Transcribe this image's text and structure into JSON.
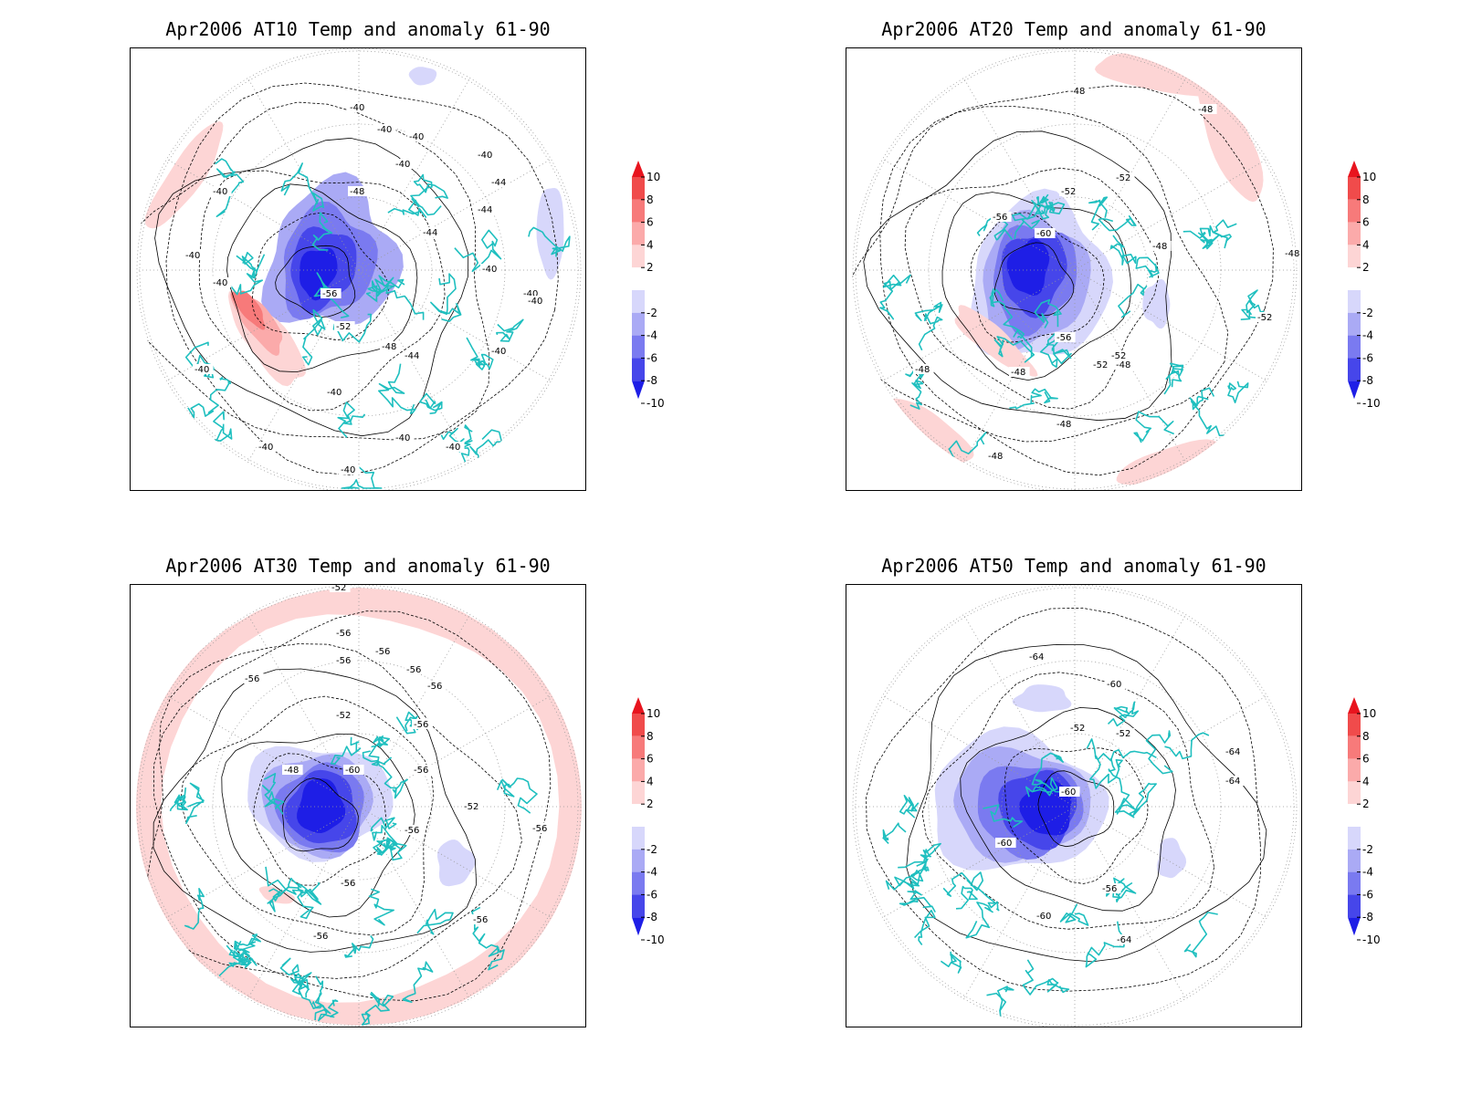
{
  "panels": [
    {
      "title": "Apr2006 AT10 Temp and anomaly 61-90",
      "contour_labels": [
        "-40",
        "-40",
        "-40",
        "-40",
        "-40",
        "-44",
        "-44",
        "-48",
        "-44",
        "-40",
        "-40",
        "-40",
        "-56",
        "-52",
        "-48",
        "-44",
        "-40",
        "-40",
        "-40",
        "-40",
        "-40",
        "-40",
        "-40",
        "-40",
        "-40",
        "-40"
      ]
    },
    {
      "title": "Apr2006 AT20 Temp and anomaly 61-90",
      "contour_labels": [
        "-48",
        "-48",
        "-52",
        "-52",
        "-56",
        "-60",
        "-48",
        "-48",
        "-52",
        "-56",
        "-52",
        "-52",
        "-48",
        "-48",
        "-48",
        "-48",
        "-48"
      ]
    },
    {
      "title": "Apr2006 AT30 Temp and anomaly 61-90",
      "contour_labels": [
        "-52",
        "-56",
        "-56",
        "-56",
        "-56",
        "-56",
        "-56",
        "-52",
        "-56",
        "-60",
        "-48",
        "-56",
        "-52",
        "-56",
        "-56",
        "-56",
        "-56",
        "-56"
      ]
    },
    {
      "title": "Apr2006 AT50 Temp and anomaly 61-90",
      "contour_labels": [
        "-64",
        "-60",
        "-52",
        "-52",
        "-64",
        "-64",
        "-60",
        "-60",
        "-56",
        "-60",
        "-64"
      ]
    }
  ],
  "colorbar": {
    "levels": [
      "10",
      "8",
      "6",
      "4",
      "2",
      "-2",
      "-4",
      "-6",
      "-8",
      "-10"
    ],
    "colors": [
      "#e8141e",
      "#f04b4b",
      "#f77a7a",
      "#fbaaaa",
      "#fdd5d5",
      "#ffffff",
      "#d7d7fb",
      "#aaaaf5",
      "#7a7af0",
      "#4646ea",
      "#1e1ee6"
    ]
  },
  "colors": {
    "coast": "#1fbfbf",
    "contour": "#000000",
    "grid": "#999999"
  }
}
